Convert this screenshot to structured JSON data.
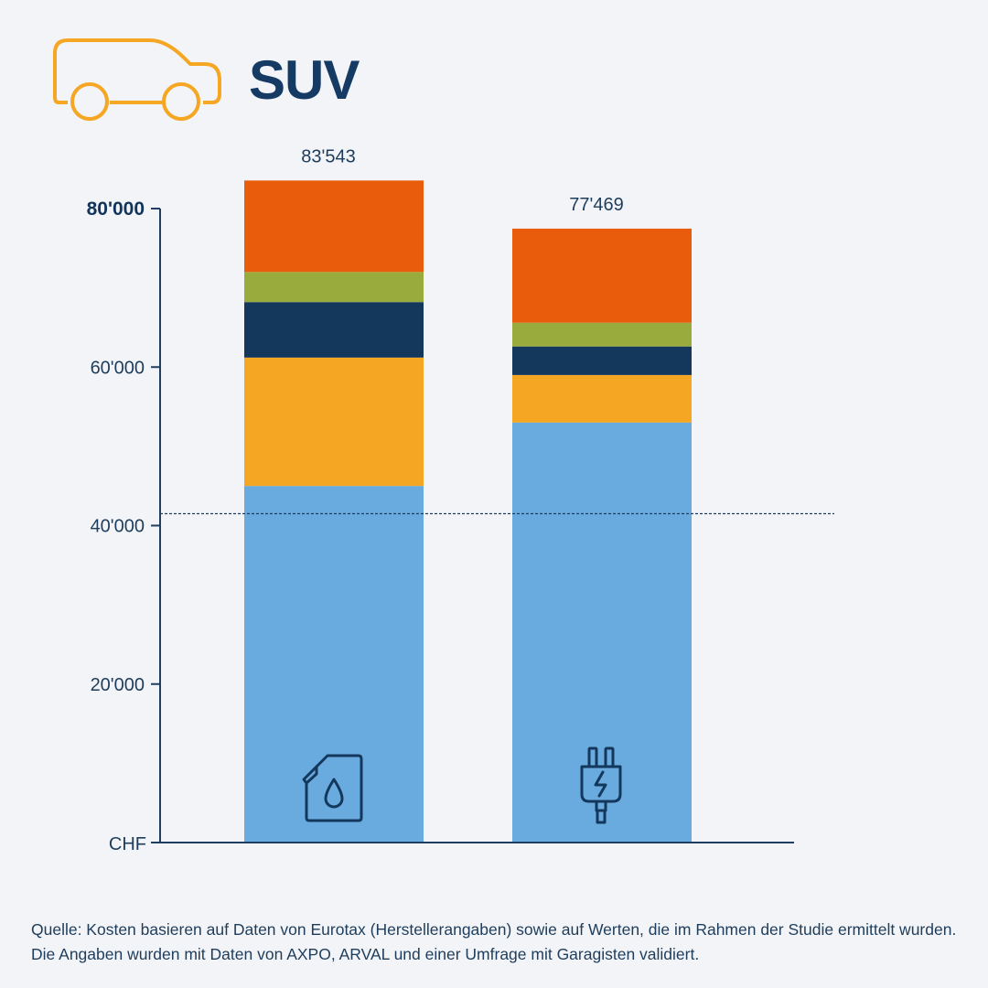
{
  "title": "SUV",
  "chart_data": {
    "type": "bar",
    "stacked": true,
    "categories": [
      "Verbrenner",
      "Elektro"
    ],
    "category_icons": [
      "fuel-canister-icon",
      "electric-plug-icon"
    ],
    "totals": [
      83543,
      77469
    ],
    "total_labels": [
      "83'543",
      "77'469"
    ],
    "segment_colors": [
      "#6aabdf",
      "#f5a623",
      "#14375c",
      "#9aab3e",
      "#e85c0c"
    ],
    "series": [
      {
        "values": [
          45000,
          53000
        ]
      },
      {
        "values": [
          16200,
          6000
        ]
      },
      {
        "values": [
          7000,
          3600
        ]
      },
      {
        "values": [
          3800,
          3000
        ]
      },
      {
        "values": [
          11543,
          11869
        ]
      }
    ],
    "ylim": [
      0,
      80000
    ],
    "y_axis_label": "CHF",
    "y_ticks": [
      {
        "value": 80000,
        "label": "80'000",
        "bold": true
      },
      {
        "value": 60000,
        "label": "60'000",
        "bold": false
      },
      {
        "value": 40000,
        "label": "40'000",
        "bold": false
      },
      {
        "value": 20000,
        "label": "20'000",
        "bold": false
      }
    ],
    "reference_line": 41500
  },
  "colors": {
    "axis": "#1f3f62",
    "icon_outline": "#f5a623",
    "icon_stroke": "#14375c"
  },
  "source": "Quelle: Kosten basieren auf Daten von Eurotax (Herstellerangaben) sowie auf Werten, die im Rahmen der Studie ermittelt wurden. Die Angaben wurden mit Daten von AXPO, ARVAL und einer Umfrage mit Garagisten validiert."
}
